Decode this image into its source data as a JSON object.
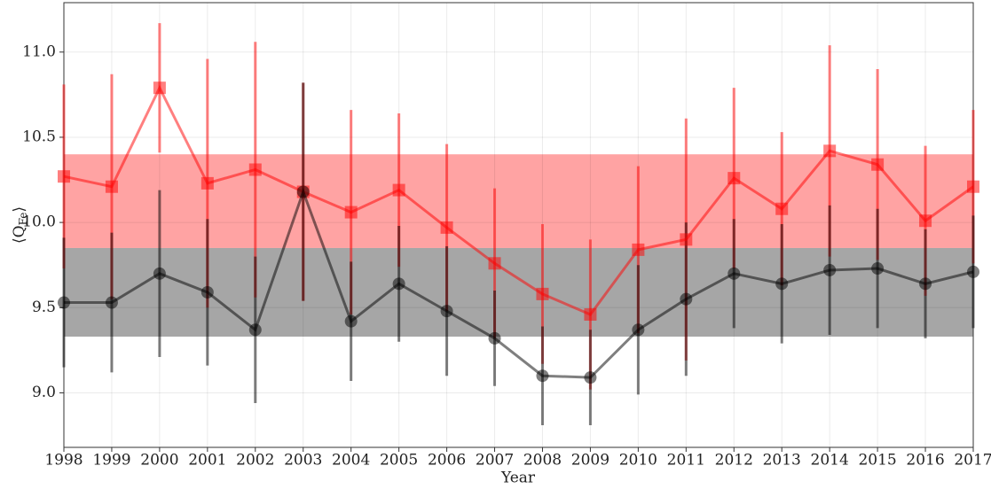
{
  "chart_data": {
    "type": "errorbar-line",
    "xlabel": "Year",
    "ylabel": [
      "⟨Q",
      "Fe",
      "⟩"
    ],
    "x": [
      1998,
      1999,
      2000,
      2001,
      2002,
      2003,
      2004,
      2005,
      2006,
      2007,
      2008,
      2009,
      2010,
      2011,
      2012,
      2013,
      2014,
      2015,
      2016,
      2017
    ],
    "xlim": [
      1998,
      2017
    ],
    "xticks": [
      1998,
      1999,
      2000,
      2001,
      2002,
      2003,
      2004,
      2005,
      2006,
      2007,
      2008,
      2009,
      2010,
      2011,
      2012,
      2013,
      2014,
      2015,
      2016,
      2017
    ],
    "ylim": [
      8.68,
      11.29
    ],
    "yticks": [
      {
        "value": 9.0,
        "label": "9.0"
      },
      9.5,
      {
        "value": 10.0,
        "label": "10.0"
      },
      10.5,
      {
        "value": 11.0,
        "label": "11.0"
      }
    ],
    "grid": true,
    "bands": [
      {
        "color": "#ffa3a3",
        "range": [
          9.85,
          10.4
        ]
      },
      {
        "color": "#a6a6a6",
        "range": [
          9.33,
          9.85
        ]
      }
    ],
    "series": [
      {
        "color": "#ff0000",
        "marker": "square",
        "values": [
          10.27,
          10.21,
          10.79,
          10.23,
          10.31,
          10.18,
          10.06,
          10.19,
          9.97,
          9.76,
          9.58,
          9.46,
          9.84,
          9.9,
          10.26,
          10.08,
          10.42,
          10.34,
          10.01,
          10.21
        ],
        "errors": [
          0.54,
          0.66,
          0.38,
          0.73,
          0.75,
          0.64,
          0.6,
          0.45,
          0.49,
          0.44,
          0.41,
          0.44,
          0.49,
          0.71,
          0.53,
          0.45,
          0.62,
          0.56,
          0.44,
          0.45
        ]
      },
      {
        "color": "#000000",
        "marker": "circle",
        "values": [
          9.53,
          9.53,
          9.7,
          9.59,
          9.37,
          10.18,
          9.42,
          9.64,
          9.48,
          9.32,
          9.1,
          9.09,
          9.37,
          9.55,
          9.7,
          9.64,
          9.72,
          9.73,
          9.64,
          9.71
        ],
        "errors": [
          0.38,
          0.41,
          0.49,
          0.43,
          0.43,
          0.64,
          0.35,
          0.34,
          0.38,
          0.28,
          0.29,
          0.28,
          0.38,
          0.45,
          0.32,
          0.35,
          0.38,
          0.35,
          0.32,
          0.33
        ]
      }
    ]
  }
}
